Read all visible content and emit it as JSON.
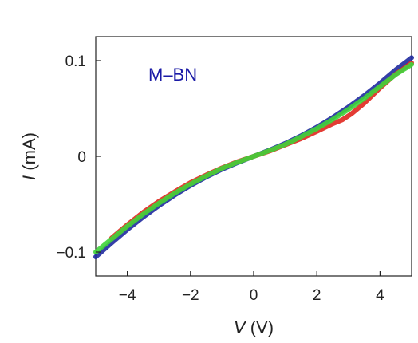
{
  "chart_data": {
    "type": "line",
    "title": "",
    "xlabel_var": "V",
    "xlabel_unit": " (V)",
    "ylabel_var": "I",
    "ylabel_unit": " (mA)",
    "xlim": [
      -5,
      5
    ],
    "ylim": [
      -0.125,
      0.125
    ],
    "xticks": [
      -4,
      -2,
      0,
      2,
      4
    ],
    "xtick_labels": [
      "−4",
      "−2",
      "0",
      "2",
      "4"
    ],
    "yticks": [
      -0.1,
      0,
      0.1
    ],
    "ytick_labels": [
      "−0.1",
      "0",
      "0.1"
    ],
    "grid": false,
    "annotation": {
      "text": "M–BN",
      "color": "#1a1aa6"
    },
    "series": [
      {
        "color": "#1f2a9e",
        "x": [
          -5,
          -4.5,
          -4,
          -3.5,
          -3,
          -2.5,
          -2,
          -1.5,
          -1,
          -0.5,
          0,
          0.5,
          1,
          1.5,
          2,
          2.5,
          3,
          3.5,
          4,
          4.5,
          5
        ],
        "y": [
          -0.105,
          -0.0905,
          -0.0765,
          -0.0635,
          -0.0515,
          -0.0405,
          -0.0305,
          -0.0215,
          -0.0135,
          -0.0065,
          0,
          0.0065,
          0.0135,
          0.0215,
          0.0305,
          0.0405,
          0.0515,
          0.0635,
          0.0765,
          0.0905,
          0.103
        ]
      },
      {
        "color": "#e0271e",
        "x": [
          -4.5,
          -4,
          -3.5,
          -3,
          -2.5,
          -2,
          -1.5,
          -1,
          -0.5,
          0,
          0.5,
          1,
          1.5,
          2,
          2.5,
          2.8,
          3.1,
          3.5,
          4,
          4.5,
          5
        ],
        "y": [
          -0.0855,
          -0.0715,
          -0.0585,
          -0.047,
          -0.037,
          -0.0275,
          -0.0195,
          -0.012,
          -0.0055,
          0,
          0.0055,
          0.012,
          0.0185,
          0.026,
          0.034,
          0.038,
          0.0445,
          0.0555,
          0.0715,
          0.086,
          0.0975
        ]
      },
      {
        "color": "#3fd43a",
        "x": [
          -5,
          -4.5,
          -4,
          -3.5,
          -3,
          -2.5,
          -2,
          -1.5,
          -1,
          -0.5,
          0,
          0.5,
          1,
          1.5,
          2,
          2.5,
          3,
          3.5,
          4,
          4.5,
          5
        ],
        "y": [
          -0.1,
          -0.0865,
          -0.073,
          -0.0605,
          -0.049,
          -0.0385,
          -0.029,
          -0.0205,
          -0.0125,
          -0.006,
          0,
          0.006,
          0.0125,
          0.0205,
          0.029,
          0.0385,
          0.049,
          0.0605,
          0.073,
          0.0855,
          0.096
        ]
      }
    ]
  }
}
